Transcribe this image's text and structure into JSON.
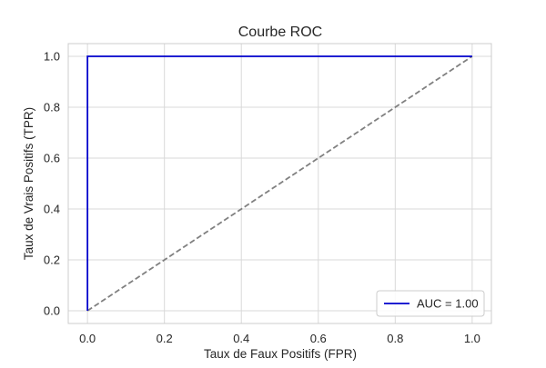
{
  "chart_data": {
    "type": "line",
    "title": "Courbe ROC",
    "xlabel": "Taux de Faux Positifs (FPR)",
    "ylabel": "Taux de Vrais Positifs (TPR)",
    "xlim": [
      -0.05,
      1.05
    ],
    "ylim": [
      -0.05,
      1.05
    ],
    "xticks": [
      0.0,
      0.2,
      0.4,
      0.6,
      0.8,
      1.0
    ],
    "yticks": [
      0.0,
      0.2,
      0.4,
      0.6,
      0.8,
      1.0
    ],
    "xtick_labels": [
      "0.0",
      "0.2",
      "0.4",
      "0.6",
      "0.8",
      "1.0"
    ],
    "ytick_labels": [
      "0.0",
      "0.2",
      "0.4",
      "0.6",
      "0.8",
      "1.0"
    ],
    "grid": true,
    "legend_position": "bottom-right",
    "series": [
      {
        "name": "AUC = 1.00",
        "color": "#0000cc",
        "style": "solid",
        "x": [
          0.0,
          0.0,
          1.0
        ],
        "y": [
          0.0,
          1.0,
          1.0
        ]
      },
      {
        "color": "#808080",
        "style": "dashed",
        "x": [
          0.0,
          1.0
        ],
        "y": [
          0.0,
          1.0
        ]
      }
    ]
  }
}
